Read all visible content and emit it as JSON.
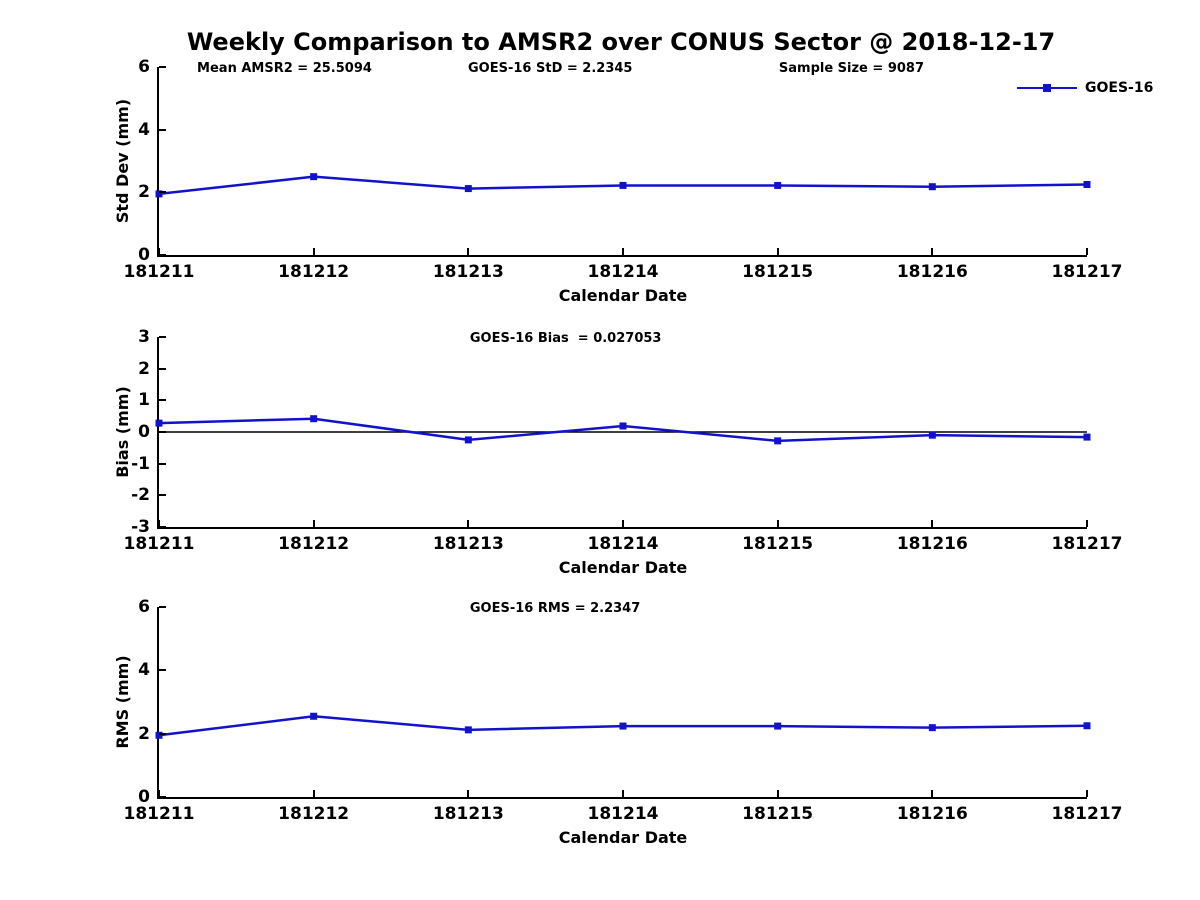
{
  "title": "Weekly Comparison to AMSR2 over CONUS Sector @ 2018-12-17",
  "legend": {
    "label": "GOES-16",
    "color": "#1212cc",
    "position": "top-right"
  },
  "chart_data": [
    {
      "type": "line",
      "ylabel": "Std Dev (mm)",
      "xlabel": "Calendar Date",
      "categories": [
        "181211",
        "181212",
        "181213",
        "181214",
        "181215",
        "181216",
        "181217"
      ],
      "series": [
        {
          "name": "GOES-16",
          "color": "#1212cc",
          "values": [
            1.95,
            2.5,
            2.12,
            2.22,
            2.22,
            2.18,
            2.25
          ]
        }
      ],
      "ylim": [
        0,
        6
      ],
      "yticks": [
        0,
        2,
        4,
        6
      ],
      "grid": false,
      "annotations": [
        {
          "text": "Mean AMSR2 = 25.5094",
          "x": 0.041
        },
        {
          "text": "GOES-16 StD = 2.2345",
          "x": 0.333
        },
        {
          "text": "Sample Size = 9087",
          "x": 0.668
        }
      ]
    },
    {
      "type": "line",
      "ylabel": "Bias (mm)",
      "xlabel": "Calendar Date",
      "categories": [
        "181211",
        "181212",
        "181213",
        "181214",
        "181215",
        "181216",
        "181217"
      ],
      "series": [
        {
          "name": "GOES-16",
          "color": "#1212cc",
          "values": [
            0.28,
            0.42,
            -0.25,
            0.19,
            -0.28,
            -0.1,
            -0.16
          ]
        }
      ],
      "ylim": [
        -3,
        3
      ],
      "yticks": [
        -3,
        -2,
        -1,
        0,
        1,
        2,
        3
      ],
      "grid": false,
      "zero_line": true,
      "annotations": [
        {
          "text": "GOES-16 Bias  = 0.027053",
          "x": 0.335
        }
      ]
    },
    {
      "type": "line",
      "ylabel": "RMS (mm)",
      "xlabel": "Calendar Date",
      "categories": [
        "181211",
        "181212",
        "181213",
        "181214",
        "181215",
        "181216",
        "181217"
      ],
      "series": [
        {
          "name": "GOES-16",
          "color": "#1212cc",
          "values": [
            1.95,
            2.55,
            2.12,
            2.24,
            2.24,
            2.19,
            2.25
          ]
        }
      ],
      "ylim": [
        0,
        6
      ],
      "yticks": [
        0,
        2,
        4,
        6
      ],
      "grid": false,
      "annotations": [
        {
          "text": "GOES-16 RMS = 2.2347",
          "x": 0.335
        }
      ]
    }
  ]
}
